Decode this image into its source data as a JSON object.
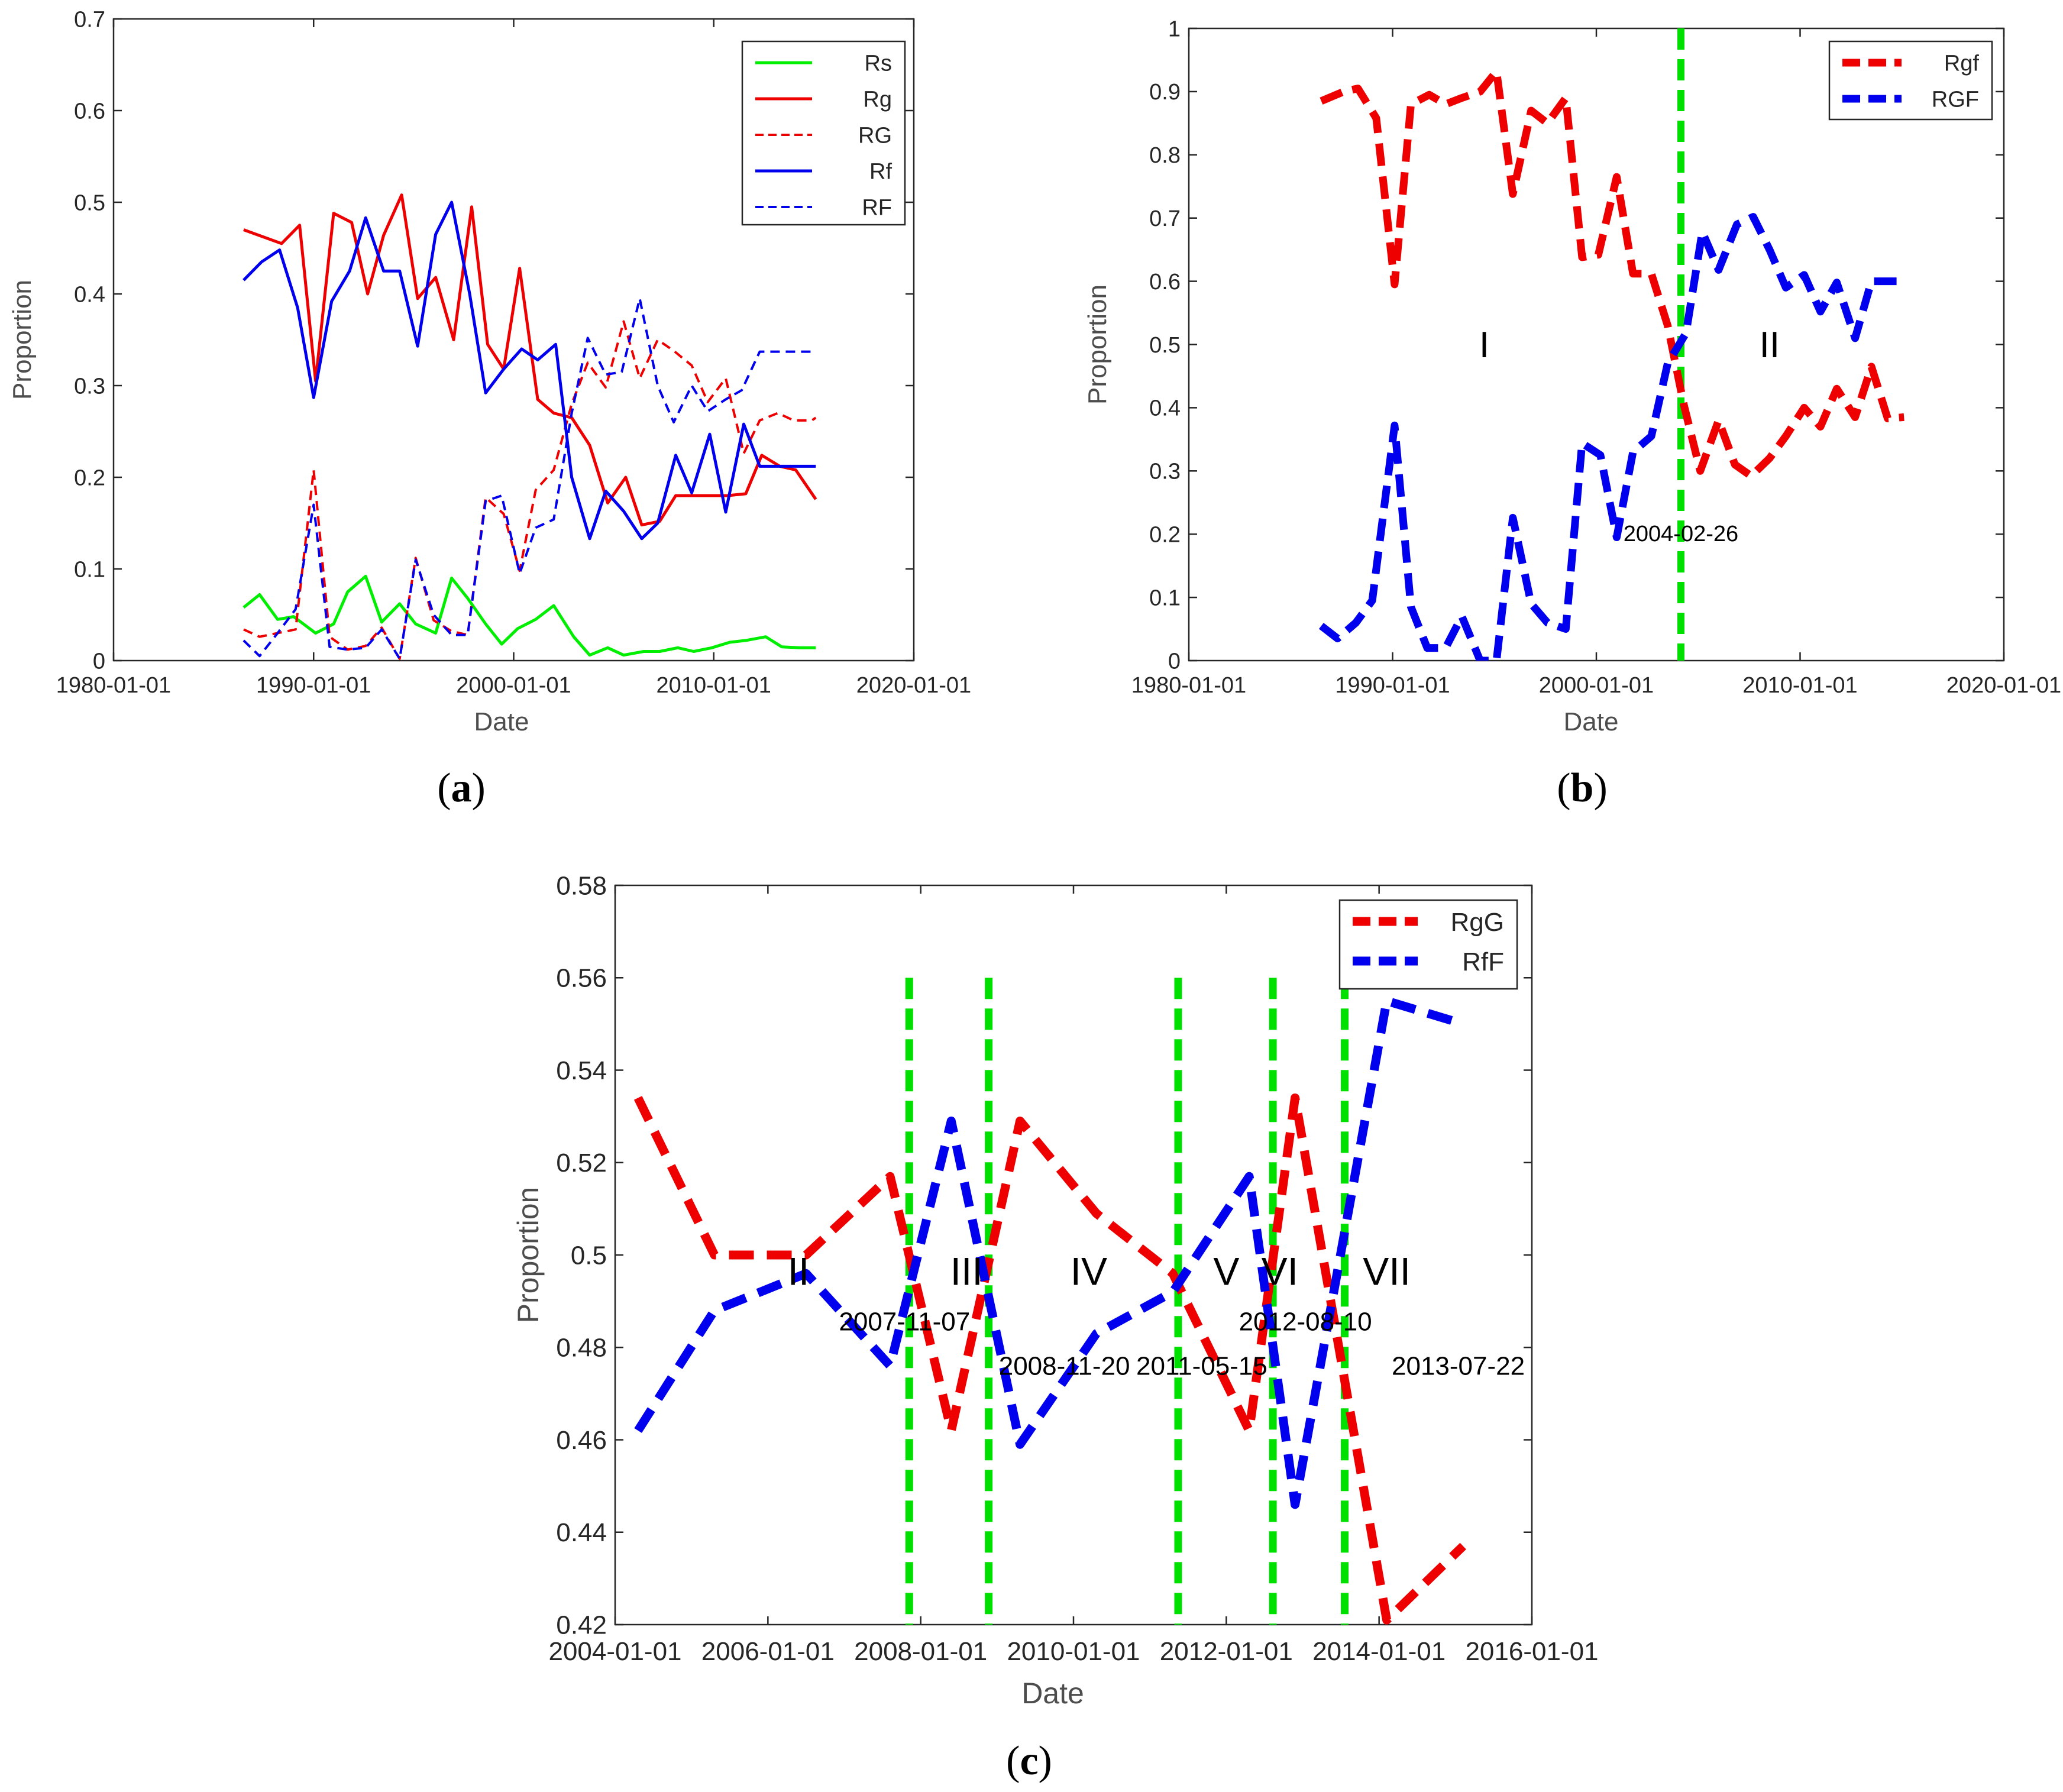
{
  "panels": {
    "a": {
      "label": "a"
    },
    "b": {
      "label": "b"
    },
    "c": {
      "label": "c"
    }
  },
  "chart_data": [
    {
      "id": "a",
      "type": "line",
      "title": "",
      "panel_label": "(a)",
      "xlabel": "Date",
      "ylabel": "Proportion",
      "xlim": [
        1980.0,
        2020.0
      ],
      "ylim": [
        0,
        0.7
      ],
      "xticks": [
        1980,
        1990,
        2000,
        2010,
        2020
      ],
      "xtick_labels": [
        "1980-01-01",
        "1990-01-01",
        "2000-01-01",
        "2010-01-01",
        "2020-01-01"
      ],
      "yticks": [
        0,
        0.1,
        0.2,
        0.3,
        0.4,
        0.5,
        0.6,
        0.7
      ],
      "ytick_labels": [
        "0",
        "0.1",
        "0.2",
        "0.3",
        "0.4",
        "0.5",
        "0.6",
        "0.7"
      ],
      "legend_position": "top-right",
      "grid": false,
      "series": [
        {
          "name": "Rs",
          "color": "#00ee00",
          "dashed": false,
          "x": [
            1986.5,
            1987.3,
            1988.2,
            1989.0,
            1990.1,
            1991.0,
            1991.7,
            1992.6,
            1993.4,
            1994.3,
            1995.1,
            1996.1,
            1996.9,
            1997.7,
            1998.6,
            1999.4,
            2000.2,
            2001.1,
            2002.0,
            2003.0,
            2003.8,
            2004.7,
            2005.5,
            2006.5,
            2007.3,
            2008.2,
            2009.0,
            2009.9,
            2010.8,
            2011.6,
            2012.6,
            2013.4,
            2014.3,
            2015.1
          ],
          "y": [
            0.058,
            0.072,
            0.045,
            0.048,
            0.03,
            0.04,
            0.075,
            0.092,
            0.042,
            0.062,
            0.04,
            0.03,
            0.09,
            0.068,
            0.04,
            0.018,
            0.035,
            0.045,
            0.06,
            0.026,
            0.006,
            0.014,
            0.006,
            0.01,
            0.01,
            0.014,
            0.01,
            0.014,
            0.02,
            0.022,
            0.026,
            0.015,
            0.014,
            0.014
          ]
        },
        {
          "name": "Rg",
          "color": "#ee0000",
          "dashed": false,
          "x": [
            1986.5,
            1988.4,
            1989.3,
            1990.1,
            1991.0,
            1991.9,
            1992.7,
            1993.5,
            1994.4,
            1995.2,
            1996.1,
            1997.0,
            1997.9,
            1998.7,
            1999.5,
            2000.3,
            2001.2,
            2002.0,
            2002.9,
            2003.8,
            2004.7,
            2005.6,
            2006.4,
            2007.3,
            2008.1,
            2009.0,
            2009.8,
            2010.7,
            2011.6,
            2012.4,
            2013.3,
            2014.1,
            2015.1
          ],
          "y": [
            0.47,
            0.455,
            0.475,
            0.305,
            0.488,
            0.478,
            0.4,
            0.464,
            0.508,
            0.395,
            0.418,
            0.35,
            0.495,
            0.345,
            0.318,
            0.428,
            0.285,
            0.27,
            0.265,
            0.235,
            0.172,
            0.2,
            0.148,
            0.152,
            0.18,
            0.18,
            0.18,
            0.18,
            0.182,
            0.224,
            0.212,
            0.208,
            0.176
          ]
        },
        {
          "name": "RG",
          "color": "#ee0000",
          "dashed": true,
          "x": [
            1986.5,
            1987.3,
            1988.2,
            1989.1,
            1990.0,
            1990.8,
            1991.7,
            1992.6,
            1993.4,
            1994.3,
            1995.1,
            1996.0,
            1996.9,
            1997.7,
            1998.6,
            1999.5,
            2000.3,
            2001.1,
            2002.0,
            2002.9,
            2003.7,
            2004.6,
            2005.5,
            2006.3,
            2007.2,
            2008.0,
            2008.9,
            2009.7,
            2010.6,
            2011.5,
            2012.3,
            2013.2,
            2014.0,
            2014.9,
            2015.1
          ],
          "y": [
            0.034,
            0.026,
            0.03,
            0.034,
            0.208,
            0.026,
            0.012,
            0.016,
            0.036,
            0.002,
            0.112,
            0.044,
            0.032,
            0.028,
            0.178,
            0.16,
            0.098,
            0.186,
            0.208,
            0.28,
            0.325,
            0.298,
            0.37,
            0.308,
            0.35,
            0.338,
            0.322,
            0.282,
            0.308,
            0.226,
            0.262,
            0.27,
            0.262,
            0.262,
            0.265
          ]
        },
        {
          "name": "Rf",
          "color": "#0000ee",
          "dashed": false,
          "x": [
            1986.5,
            1987.4,
            1988.3,
            1989.2,
            1990.0,
            1990.9,
            1991.8,
            1992.6,
            1993.5,
            1994.3,
            1995.2,
            1996.1,
            1996.9,
            1997.8,
            1998.6,
            1999.5,
            2000.4,
            2001.2,
            2002.1,
            2002.9,
            2003.8,
            2004.6,
            2005.5,
            2006.4,
            2007.2,
            2008.1,
            2008.9,
            2009.8,
            2010.6,
            2011.5,
            2012.3,
            2013.2,
            2014.0,
            2014.9,
            2015.1
          ],
          "y": [
            0.415,
            0.435,
            0.448,
            0.385,
            0.287,
            0.392,
            0.425,
            0.483,
            0.425,
            0.425,
            0.343,
            0.465,
            0.5,
            0.4,
            0.292,
            0.318,
            0.34,
            0.328,
            0.345,
            0.2,
            0.133,
            0.185,
            0.163,
            0.133,
            0.15,
            0.224,
            0.183,
            0.247,
            0.162,
            0.258,
            0.212,
            0.212,
            0.212,
            0.212,
            0.212
          ]
        },
        {
          "name": "RF",
          "color": "#0000ee",
          "dashed": true,
          "x": [
            1986.5,
            1987.3,
            1988.2,
            1989.1,
            1990.0,
            1990.8,
            1991.7,
            1992.6,
            1993.4,
            1994.3,
            1995.1,
            1996.0,
            1996.9,
            1997.7,
            1998.6,
            1999.4,
            2000.3,
            2001.1,
            2002.0,
            2002.9,
            2003.7,
            2004.6,
            2005.4,
            2006.3,
            2007.2,
            2008.0,
            2008.9,
            2009.7,
            2010.6,
            2011.4,
            2012.3,
            2013.1,
            2014.0,
            2014.8,
            2015.1
          ],
          "y": [
            0.022,
            0.005,
            0.03,
            0.056,
            0.17,
            0.015,
            0.012,
            0.014,
            0.034,
            0.002,
            0.11,
            0.05,
            0.028,
            0.028,
            0.174,
            0.18,
            0.095,
            0.145,
            0.154,
            0.27,
            0.352,
            0.312,
            0.315,
            0.395,
            0.3,
            0.26,
            0.3,
            0.272,
            0.285,
            0.295,
            0.337,
            0.337,
            0.337,
            0.337,
            0.337
          ]
        }
      ]
    },
    {
      "id": "b",
      "type": "line",
      "title": "",
      "panel_label": "(b)",
      "xlabel": "Date",
      "ylabel": "Proportion",
      "xlim": [
        1980.0,
        2020.0
      ],
      "ylim": [
        0,
        1
      ],
      "xticks": [
        1980,
        1990,
        2000,
        2010,
        2020
      ],
      "xtick_labels": [
        "1980-01-01",
        "1990-01-01",
        "2000-01-01",
        "2010-01-01",
        "2020-01-01"
      ],
      "yticks": [
        0,
        0.1,
        0.2,
        0.3,
        0.4,
        0.5,
        0.6,
        0.7,
        0.8,
        0.9,
        1
      ],
      "ytick_labels": [
        "0",
        "0.1",
        "0.2",
        "0.3",
        "0.4",
        "0.5",
        "0.6",
        "0.7",
        "0.8",
        "0.9",
        "1"
      ],
      "legend_position": "top-right",
      "grid": false,
      "series": [
        {
          "name": "Rgf",
          "color": "#ee0000",
          "dashed": true,
          "x": [
            1986.5,
            1987.6,
            1988.3,
            1989.2,
            1990.1,
            1990.9,
            1991.8,
            1992.6,
            1993.4,
            1994.3,
            1995.1,
            1995.9,
            1996.8,
            1997.6,
            1998.5,
            1999.3,
            2000.1,
            2001.0,
            2001.8,
            2002.7,
            2003.5,
            2004.3,
            2005.1,
            2006.0,
            2006.8,
            2007.6,
            2008.5,
            2009.3,
            2010.2,
            2011.0,
            2011.8,
            2012.7,
            2013.5,
            2014.3,
            2015.1
          ],
          "y": [
            0.885,
            0.9,
            0.905,
            0.858,
            0.595,
            0.88,
            0.895,
            0.88,
            0.89,
            0.9,
            0.932,
            0.738,
            0.87,
            0.85,
            0.89,
            0.638,
            0.642,
            0.765,
            0.612,
            0.612,
            0.53,
            0.404,
            0.3,
            0.38,
            0.31,
            0.292,
            0.32,
            0.355,
            0.4,
            0.37,
            0.43,
            0.385,
            0.465,
            0.383,
            0.385
          ]
        },
        {
          "name": "RGF",
          "color": "#0000ee",
          "dashed": true,
          "x": [
            1986.5,
            1987.3,
            1988.2,
            1989.0,
            1990.1,
            1990.9,
            1991.7,
            1992.6,
            1993.4,
            1994.3,
            1995.1,
            1995.9,
            1996.8,
            1997.6,
            1998.5,
            1999.3,
            2000.2,
            2001.0,
            2001.8,
            2002.7,
            2003.5,
            2004.4,
            2005.2,
            2006.0,
            2006.9,
            2007.7,
            2008.5,
            2009.3,
            2010.2,
            2011.0,
            2011.8,
            2012.7,
            2013.5,
            2014.3,
            2015.1
          ],
          "y": [
            0.055,
            0.035,
            0.06,
            0.095,
            0.372,
            0.085,
            0.02,
            0.02,
            0.07,
            0.0,
            0.0,
            0.226,
            0.09,
            0.06,
            0.05,
            0.344,
            0.325,
            0.195,
            0.33,
            0.355,
            0.47,
            0.518,
            0.678,
            0.618,
            0.69,
            0.702,
            0.65,
            0.59,
            0.61,
            0.552,
            0.598,
            0.51,
            0.6,
            0.6,
            0.6
          ]
        }
      ],
      "breakpoints": [
        {
          "x": 2004.15,
          "label": "2004-02-26"
        }
      ],
      "regions": [
        {
          "label": "I",
          "x": 1994.5,
          "y": 0.5
        },
        {
          "label": "II",
          "x": 2008.5,
          "y": 0.5
        }
      ]
    },
    {
      "id": "c",
      "type": "line",
      "title": "",
      "panel_label": "(c)",
      "xlabel": "Date",
      "ylabel": "Proportion",
      "xlim": [
        2004.0,
        2016.0
      ],
      "ylim": [
        0.42,
        0.58
      ],
      "xticks": [
        2004,
        2006,
        2008,
        2010,
        2012,
        2014,
        2016
      ],
      "xtick_labels": [
        "2004-01-01",
        "2006-01-01",
        "2008-01-01",
        "2010-01-01",
        "2012-01-01",
        "2014-01-01",
        "2016-01-01"
      ],
      "yticks": [
        0.42,
        0.44,
        0.46,
        0.48,
        0.5,
        0.52,
        0.54,
        0.56,
        0.58
      ],
      "ytick_labels": [
        "0.42",
        "0.44",
        "0.46",
        "0.48",
        "0.5",
        "0.52",
        "0.54",
        "0.56",
        "0.58"
      ],
      "legend_position": "top-right",
      "grid": false,
      "series": [
        {
          "name": "RgG",
          "color": "#ee0000",
          "dashed": true,
          "x": [
            2004.3,
            2005.3,
            2006.5,
            2007.6,
            2008.4,
            2009.3,
            2010.3,
            2011.3,
            2012.3,
            2012.9,
            2014.1,
            2015.1
          ],
          "y": [
            0.534,
            0.5,
            0.5,
            0.517,
            0.462,
            0.529,
            0.509,
            0.496,
            0.462,
            0.534,
            0.421,
            0.437
          ]
        },
        {
          "name": "RfF",
          "color": "#0000ee",
          "dashed": true,
          "x": [
            2004.3,
            2005.3,
            2006.5,
            2007.6,
            2008.4,
            2009.3,
            2010.3,
            2011.3,
            2012.3,
            2012.9,
            2014.1,
            2015.1
          ],
          "y": [
            0.462,
            0.488,
            0.496,
            0.476,
            0.529,
            0.459,
            0.483,
            0.492,
            0.517,
            0.446,
            0.555,
            0.55
          ]
        }
      ],
      "breakpoints": [
        {
          "x": 2007.85,
          "label": "2007-11-07"
        },
        {
          "x": 2008.89,
          "label": "2008-11-20"
        },
        {
          "x": 2011.37,
          "label": "2011-05-15"
        },
        {
          "x": 2012.61,
          "label": "2012-08-10"
        },
        {
          "x": 2013.55,
          "label": "2013-07-22"
        }
      ],
      "regions": [
        {
          "label": "II",
          "x": 2006.4,
          "y": 0.4965
        },
        {
          "label": "III",
          "x": 2008.6,
          "y": 0.4965
        },
        {
          "label": "IV",
          "x": 2010.2,
          "y": 0.4965
        },
        {
          "label": "V",
          "x": 2012.0,
          "y": 0.4965
        },
        {
          "label": "VI",
          "x": 2012.7,
          "y": 0.4965
        },
        {
          "label": "VII",
          "x": 2014.1,
          "y": 0.4965
        }
      ]
    }
  ]
}
